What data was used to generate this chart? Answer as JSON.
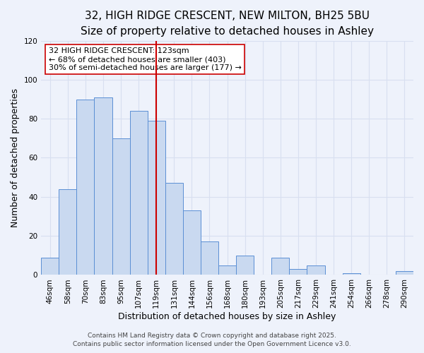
{
  "title": "32, HIGH RIDGE CRESCENT, NEW MILTON, BH25 5BU",
  "subtitle": "Size of property relative to detached houses in Ashley",
  "xlabel": "Distribution of detached houses by size in Ashley",
  "ylabel": "Number of detached properties",
  "bar_labels": [
    "46sqm",
    "58sqm",
    "70sqm",
    "83sqm",
    "95sqm",
    "107sqm",
    "119sqm",
    "131sqm",
    "144sqm",
    "156sqm",
    "168sqm",
    "180sqm",
    "193sqm",
    "205sqm",
    "217sqm",
    "229sqm",
    "241sqm",
    "254sqm",
    "266sqm",
    "278sqm",
    "290sqm"
  ],
  "bar_values": [
    9,
    44,
    90,
    91,
    70,
    84,
    79,
    47,
    33,
    17,
    5,
    10,
    0,
    9,
    3,
    5,
    0,
    1,
    0,
    0,
    2
  ],
  "bar_color": "#c9d9f0",
  "bar_edge_color": "#5b8fd4",
  "vline_x": 6.0,
  "vline_color": "#cc0000",
  "ylim": [
    0,
    120
  ],
  "yticks": [
    0,
    20,
    40,
    60,
    80,
    100,
    120
  ],
  "annotation_title": "32 HIGH RIDGE CRESCENT: 123sqm",
  "annotation_line1": "← 68% of detached houses are smaller (403)",
  "annotation_line2": "30% of semi-detached houses are larger (177) →",
  "annotation_box_color": "#ffffff",
  "annotation_box_edge": "#cc0000",
  "footer1": "Contains HM Land Registry data © Crown copyright and database right 2025.",
  "footer2": "Contains public sector information licensed under the Open Government Licence v3.0.",
  "bg_color": "#eef2fb",
  "grid_color": "#d8dff0",
  "title_fontsize": 11,
  "subtitle_fontsize": 9.5,
  "axis_label_fontsize": 9,
  "tick_fontsize": 7.5,
  "annotation_fontsize": 8,
  "footer_fontsize": 6.5
}
